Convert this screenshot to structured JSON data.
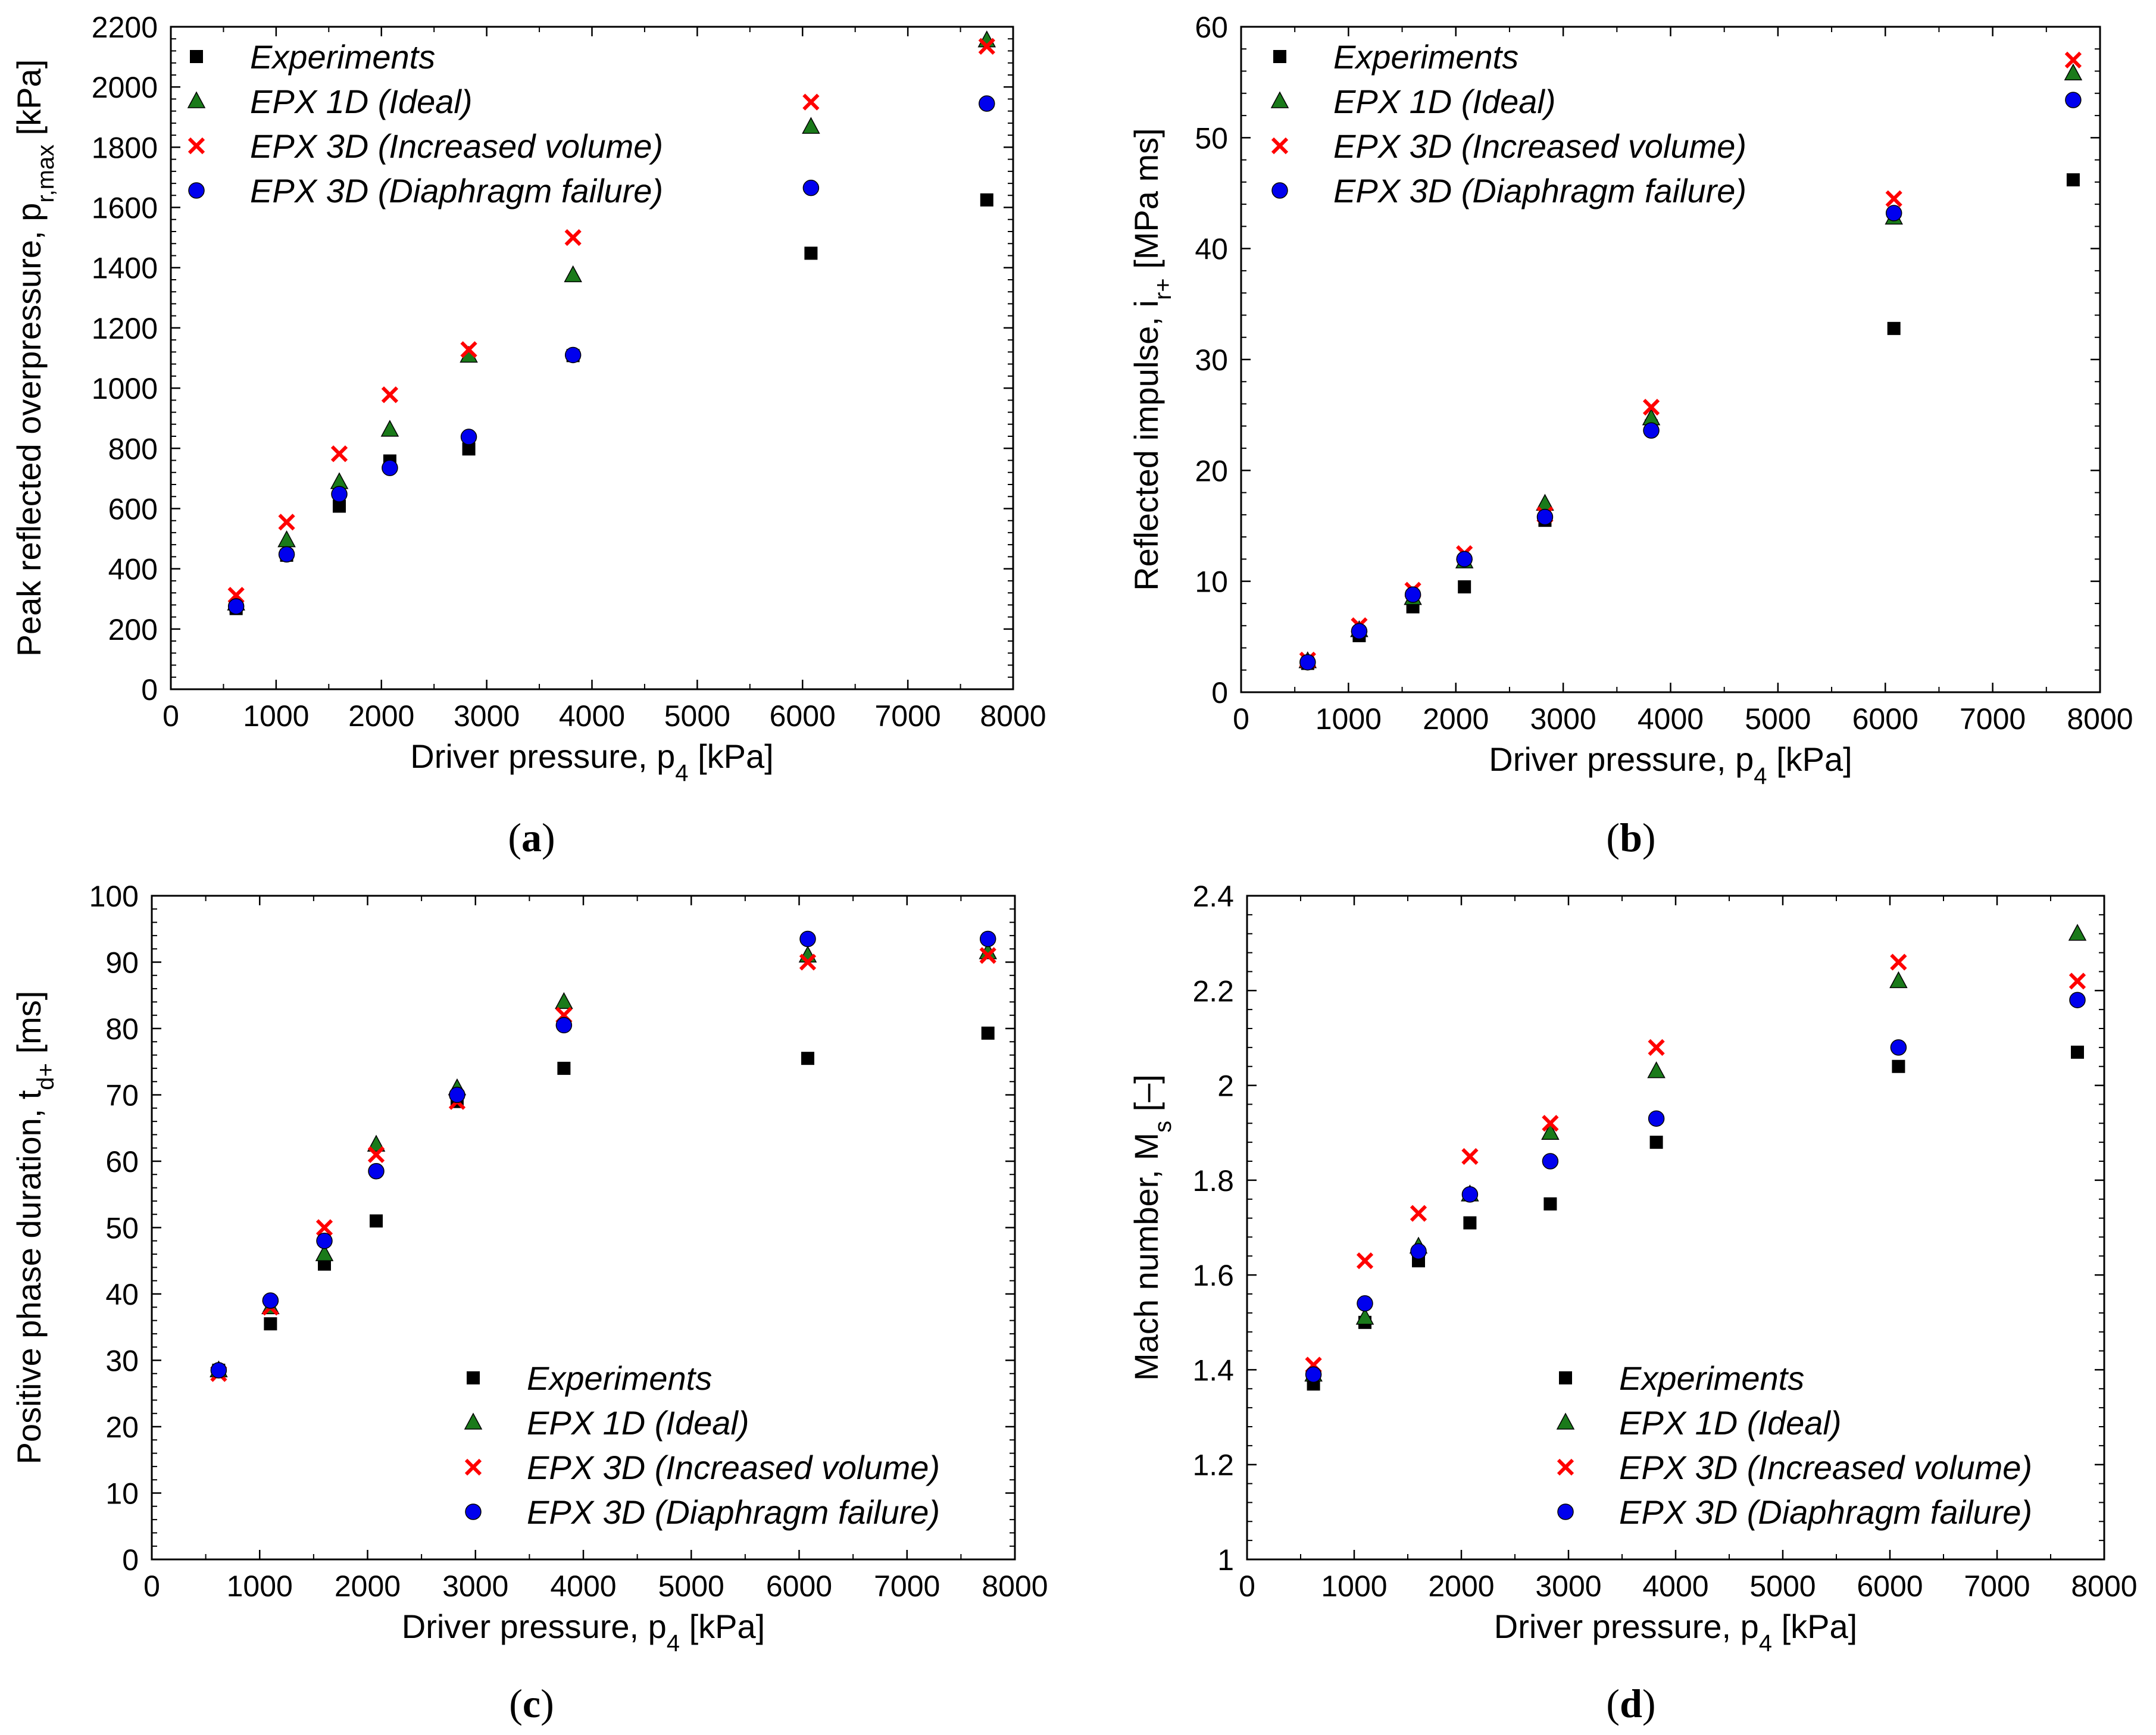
{
  "figure": {
    "colors": {
      "experiments": "#000000",
      "epx1d": "#1a7a1a",
      "epx3d_volume": "#ff0000",
      "epx3d_diaphragm": "#0000ee"
    }
  },
  "chart_data": [
    {
      "id": "a",
      "type": "scatter",
      "caption": "a",
      "xlabel": "Driver pressure, p",
      "xlabel_sub": "4",
      "xlabel_unit": " [kPa]",
      "ylabel": "Peak reflected overpressure, p",
      "ylabel_sub": "r,max",
      "ylabel_unit": " [kPa]",
      "xlim": [
        0,
        8000
      ],
      "ylim": [
        0,
        2200
      ],
      "xticks": [
        0,
        1000,
        2000,
        3000,
        4000,
        5000,
        6000,
        7000,
        8000
      ],
      "yticks": [
        0,
        200,
        400,
        600,
        800,
        1000,
        1200,
        1400,
        1600,
        1800,
        2000,
        2200
      ],
      "ytick_labels": [
        "0",
        "200",
        "400",
        "600",
        "800",
        "1000",
        "1200",
        "1400",
        "1600",
        "1800",
        "2000",
        "2200"
      ],
      "legend_position": "top-left",
      "x": [
        620,
        1100,
        1600,
        2080,
        2830,
        3820,
        6080,
        7750
      ],
      "series": [
        {
          "name": "Experiments",
          "marker": "square",
          "values": [
            268,
            445,
            608,
            758,
            798,
            1108,
            1448,
            1625
          ]
        },
        {
          "name": "EPX 1D (Ideal)",
          "marker": "triangle",
          "values": [
            285,
            495,
            688,
            862,
            1108,
            1375,
            1868,
            2155
          ]
        },
        {
          "name": "EPX 3D (Increased volume)",
          "marker": "cross",
          "values": [
            312,
            555,
            782,
            978,
            1128,
            1500,
            1950,
            2135
          ]
        },
        {
          "name": "EPX 3D (Diaphragm failure)",
          "marker": "circle",
          "values": [
            275,
            448,
            648,
            735,
            838,
            1110,
            1665,
            1945
          ]
        }
      ]
    },
    {
      "id": "b",
      "type": "scatter",
      "caption": "b",
      "xlabel": "Driver pressure, p",
      "xlabel_sub": "4",
      "xlabel_unit": " [kPa]",
      "ylabel": "Reflected impulse, i",
      "ylabel_sub": "r+",
      "ylabel_unit": " [MPa ms]",
      "xlim": [
        0,
        8000
      ],
      "ylim": [
        0,
        60
      ],
      "xticks": [
        0,
        1000,
        2000,
        3000,
        4000,
        5000,
        6000,
        7000,
        8000
      ],
      "yticks": [
        0,
        10,
        20,
        30,
        40,
        50,
        60
      ],
      "ytick_labels": [
        "0",
        "10",
        "20",
        "30",
        "40",
        "50",
        "60"
      ],
      "legend_position": "top-left",
      "x": [
        620,
        1100,
        1600,
        2080,
        2830,
        3820,
        6080,
        7750
      ],
      "series": [
        {
          "name": "Experiments",
          "marker": "square",
          "values": [
            2.6,
            5.1,
            7.7,
            9.5,
            15.5,
            24.0,
            32.8,
            46.2
          ]
        },
        {
          "name": "EPX 1D (Ideal)",
          "marker": "triangle",
          "values": [
            2.8,
            5.6,
            8.5,
            11.8,
            17.0,
            24.7,
            42.8,
            55.8
          ]
        },
        {
          "name": "EPX 3D (Increased volume)",
          "marker": "cross",
          "values": [
            2.9,
            6.0,
            9.2,
            12.5,
            16.0,
            25.7,
            44.5,
            57.0
          ]
        },
        {
          "name": "EPX 3D (Diaphragm failure)",
          "marker": "circle",
          "values": [
            2.7,
            5.5,
            8.8,
            12.0,
            15.8,
            23.6,
            43.2,
            53.4
          ]
        }
      ]
    },
    {
      "id": "c",
      "type": "scatter",
      "caption": "c",
      "xlabel": "Driver pressure, p",
      "xlabel_sub": "4",
      "xlabel_unit": " [kPa]",
      "ylabel": "Positive phase duration, t",
      "ylabel_sub": "d+",
      "ylabel_unit": " [ms]",
      "xlim": [
        0,
        8000
      ],
      "ylim": [
        0,
        100
      ],
      "xticks": [
        0,
        1000,
        2000,
        3000,
        4000,
        5000,
        6000,
        7000,
        8000
      ],
      "yticks": [
        0,
        10,
        20,
        30,
        40,
        50,
        60,
        70,
        80,
        90,
        100
      ],
      "ytick_labels": [
        "0",
        "10",
        "20",
        "30",
        "40",
        "50",
        "60",
        "70",
        "80",
        "90",
        "100"
      ],
      "legend_position": "bottom-right",
      "x": [
        620,
        1100,
        1600,
        2080,
        2830,
        3820,
        6080,
        7750
      ],
      "series": [
        {
          "name": "Experiments",
          "marker": "square",
          "values": [
            28.5,
            35.5,
            44.5,
            51.0,
            69.0,
            74.0,
            75.5,
            79.3
          ]
        },
        {
          "name": "EPX 1D (Ideal)",
          "marker": "triangle",
          "values": [
            28.5,
            38.0,
            46.0,
            62.5,
            71.0,
            84.0,
            91.0,
            91.5
          ]
        },
        {
          "name": "EPX 3D (Increased volume)",
          "marker": "cross",
          "values": [
            28.0,
            38.0,
            50.0,
            61.0,
            69.0,
            82.0,
            90.0,
            91.0
          ]
        },
        {
          "name": "EPX 3D (Diaphragm failure)",
          "marker": "circle",
          "values": [
            28.5,
            39.0,
            48.0,
            58.5,
            70.0,
            80.5,
            93.5,
            93.5
          ]
        }
      ]
    },
    {
      "id": "d",
      "type": "scatter",
      "caption": "d",
      "xlabel": "Driver pressure, p",
      "xlabel_sub": "4",
      "xlabel_unit": " [kPa]",
      "ylabel": "Mach number, M",
      "ylabel_sub": "s",
      "ylabel_unit": " [–]",
      "xlim": [
        0,
        8000
      ],
      "ylim": [
        1,
        2.4
      ],
      "xticks": [
        0,
        1000,
        2000,
        3000,
        4000,
        5000,
        6000,
        7000,
        8000
      ],
      "yticks": [
        1,
        1.2,
        1.4,
        1.6,
        1.8,
        2,
        2.2,
        2.4
      ],
      "ytick_labels": [
        "1",
        "1.2",
        "1.4",
        "1.6",
        "1.8",
        "2",
        "2.2",
        "2.4"
      ],
      "legend_position": "bottom-right",
      "x": [
        620,
        1100,
        1600,
        2080,
        2830,
        3820,
        6080,
        7750
      ],
      "series": [
        {
          "name": "Experiments",
          "marker": "square",
          "values": [
            1.37,
            1.5,
            1.63,
            1.71,
            1.75,
            1.88,
            2.04,
            2.07
          ]
        },
        {
          "name": "EPX 1D (Ideal)",
          "marker": "triangle",
          "values": [
            1.39,
            1.51,
            1.66,
            1.77,
            1.9,
            2.03,
            2.22,
            2.32
          ]
        },
        {
          "name": "EPX 3D (Increased volume)",
          "marker": "cross",
          "values": [
            1.41,
            1.63,
            1.73,
            1.85,
            1.92,
            2.08,
            2.26,
            2.22
          ]
        },
        {
          "name": "EPX 3D (Diaphragm failure)",
          "marker": "circle",
          "values": [
            1.39,
            1.54,
            1.65,
            1.77,
            1.84,
            1.93,
            2.08,
            2.18
          ]
        }
      ]
    }
  ]
}
